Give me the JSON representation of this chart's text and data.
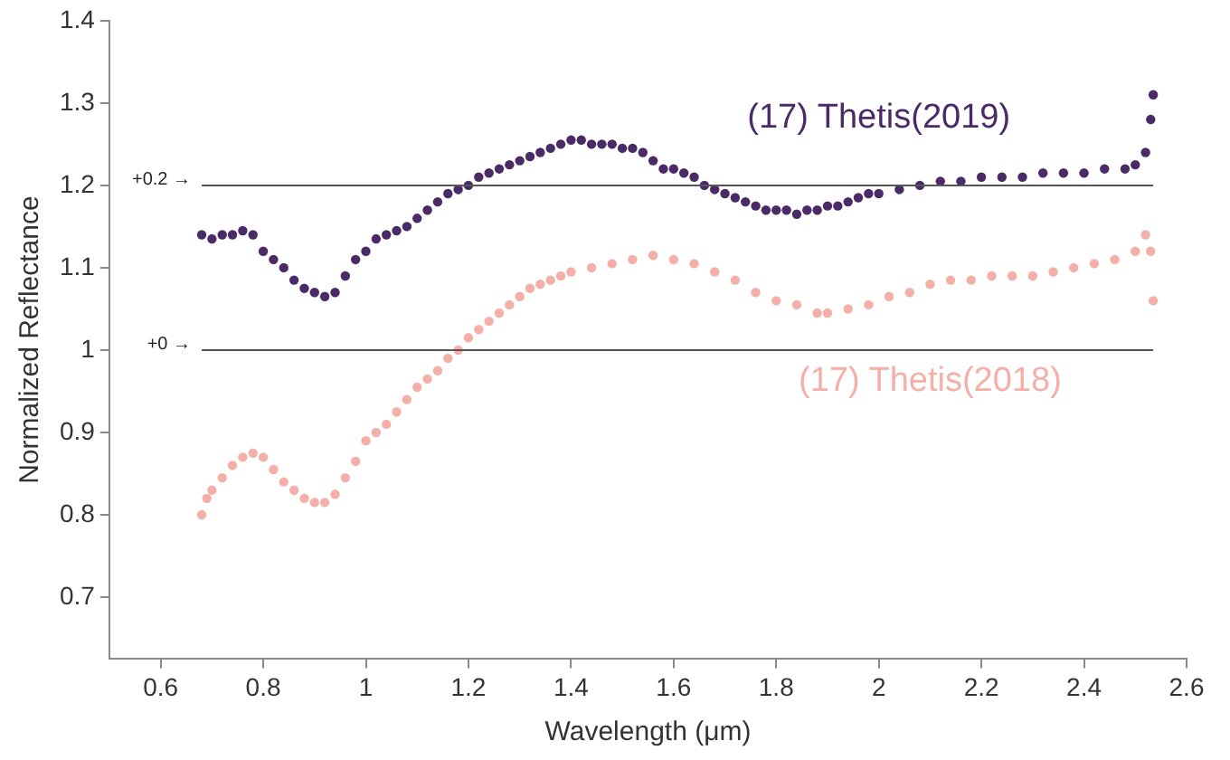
{
  "chart_data": {
    "type": "scatter",
    "xlabel": "Wavelength (μm)",
    "ylabel": "Normalized Reflectance",
    "xlim": [
      0.5,
      2.6
    ],
    "xticks": [
      0.6,
      0.8,
      1,
      1.2,
      1.4,
      1.6,
      1.8,
      2,
      2.2,
      2.4,
      2.6
    ],
    "ylim": [
      0.625,
      1.4
    ],
    "yticks": [
      0.7,
      0.8,
      0.9,
      1,
      1.1,
      1.2,
      1.3,
      1.4
    ],
    "grid": false,
    "legend": false,
    "marker": "circle",
    "ref_lines": [
      {
        "axis": "y",
        "value": 1.2,
        "label": "+0.2 →",
        "color": "#555555"
      },
      {
        "axis": "y",
        "value": 1,
        "label": "+0 →",
        "color": "#555555"
      }
    ],
    "series": [
      {
        "name": "(17) Thetis(2019)",
        "color": "#4b2a68",
        "x": [
          0.68,
          0.7,
          0.72,
          0.74,
          0.76,
          0.78,
          0.8,
          0.82,
          0.84,
          0.86,
          0.88,
          0.9,
          0.92,
          0.94,
          0.96,
          0.98,
          1,
          1.02,
          1.04,
          1.06,
          1.08,
          1.1,
          1.12,
          1.14,
          1.16,
          1.18,
          1.2,
          1.22,
          1.24,
          1.26,
          1.28,
          1.3,
          1.32,
          1.34,
          1.36,
          1.38,
          1.4,
          1.42,
          1.44,
          1.46,
          1.48,
          1.5,
          1.52,
          1.54,
          1.56,
          1.58,
          1.6,
          1.62,
          1.64,
          1.66,
          1.68,
          1.7,
          1.72,
          1.74,
          1.76,
          1.78,
          1.8,
          1.82,
          1.84,
          1.86,
          1.88,
          1.9,
          1.92,
          1.94,
          1.96,
          1.98,
          2,
          2.04,
          2.08,
          2.12,
          2.16,
          2.2,
          2.24,
          2.28,
          2.32,
          2.36,
          2.4,
          2.44,
          2.48,
          2.5,
          2.52,
          2.53,
          2.535
        ],
        "values": [
          1.14,
          1.135,
          1.14,
          1.14,
          1.145,
          1.14,
          1.12,
          1.11,
          1.1,
          1.085,
          1.075,
          1.07,
          1.065,
          1.07,
          1.09,
          1.11,
          1.12,
          1.135,
          1.14,
          1.145,
          1.15,
          1.16,
          1.17,
          1.18,
          1.19,
          1.195,
          1.2,
          1.21,
          1.215,
          1.22,
          1.225,
          1.23,
          1.235,
          1.24,
          1.245,
          1.25,
          1.255,
          1.255,
          1.25,
          1.25,
          1.25,
          1.245,
          1.245,
          1.24,
          1.23,
          1.22,
          1.22,
          1.215,
          1.21,
          1.2,
          1.195,
          1.19,
          1.185,
          1.18,
          1.175,
          1.17,
          1.17,
          1.17,
          1.165,
          1.17,
          1.17,
          1.175,
          1.175,
          1.18,
          1.185,
          1.19,
          1.19,
          1.195,
          1.2,
          1.205,
          1.205,
          1.21,
          1.21,
          1.21,
          1.215,
          1.215,
          1.215,
          1.22,
          1.22,
          1.225,
          1.24,
          1.28,
          1.31
        ]
      },
      {
        "name": "(17) Thetis(2018)",
        "color": "#f4b0a8",
        "x": [
          0.68,
          0.69,
          0.7,
          0.72,
          0.74,
          0.76,
          0.78,
          0.8,
          0.82,
          0.84,
          0.86,
          0.88,
          0.9,
          0.92,
          0.94,
          0.96,
          0.98,
          1,
          1.02,
          1.04,
          1.06,
          1.08,
          1.1,
          1.12,
          1.14,
          1.16,
          1.18,
          1.2,
          1.22,
          1.24,
          1.26,
          1.28,
          1.3,
          1.32,
          1.34,
          1.36,
          1.38,
          1.4,
          1.44,
          1.48,
          1.52,
          1.56,
          1.6,
          1.64,
          1.68,
          1.72,
          1.76,
          1.8,
          1.84,
          1.88,
          1.9,
          1.94,
          1.98,
          2.02,
          2.06,
          2.1,
          2.14,
          2.18,
          2.22,
          2.26,
          2.3,
          2.34,
          2.38,
          2.42,
          2.46,
          2.5,
          2.52,
          2.53,
          2.535
        ],
        "values": [
          0.8,
          0.82,
          0.83,
          0.845,
          0.86,
          0.87,
          0.875,
          0.87,
          0.855,
          0.84,
          0.83,
          0.82,
          0.815,
          0.815,
          0.825,
          0.845,
          0.865,
          0.89,
          0.9,
          0.91,
          0.925,
          0.94,
          0.955,
          0.965,
          0.975,
          0.99,
          1,
          1.015,
          1.025,
          1.035,
          1.045,
          1.055,
          1.065,
          1.075,
          1.08,
          1.085,
          1.09,
          1.095,
          1.1,
          1.105,
          1.11,
          1.115,
          1.11,
          1.105,
          1.095,
          1.085,
          1.07,
          1.06,
          1.055,
          1.045,
          1.045,
          1.05,
          1.055,
          1.065,
          1.07,
          1.08,
          1.085,
          1.085,
          1.09,
          1.09,
          1.09,
          1.095,
          1.1,
          1.105,
          1.11,
          1.12,
          1.14,
          1.12,
          1.06
        ]
      }
    ]
  }
}
